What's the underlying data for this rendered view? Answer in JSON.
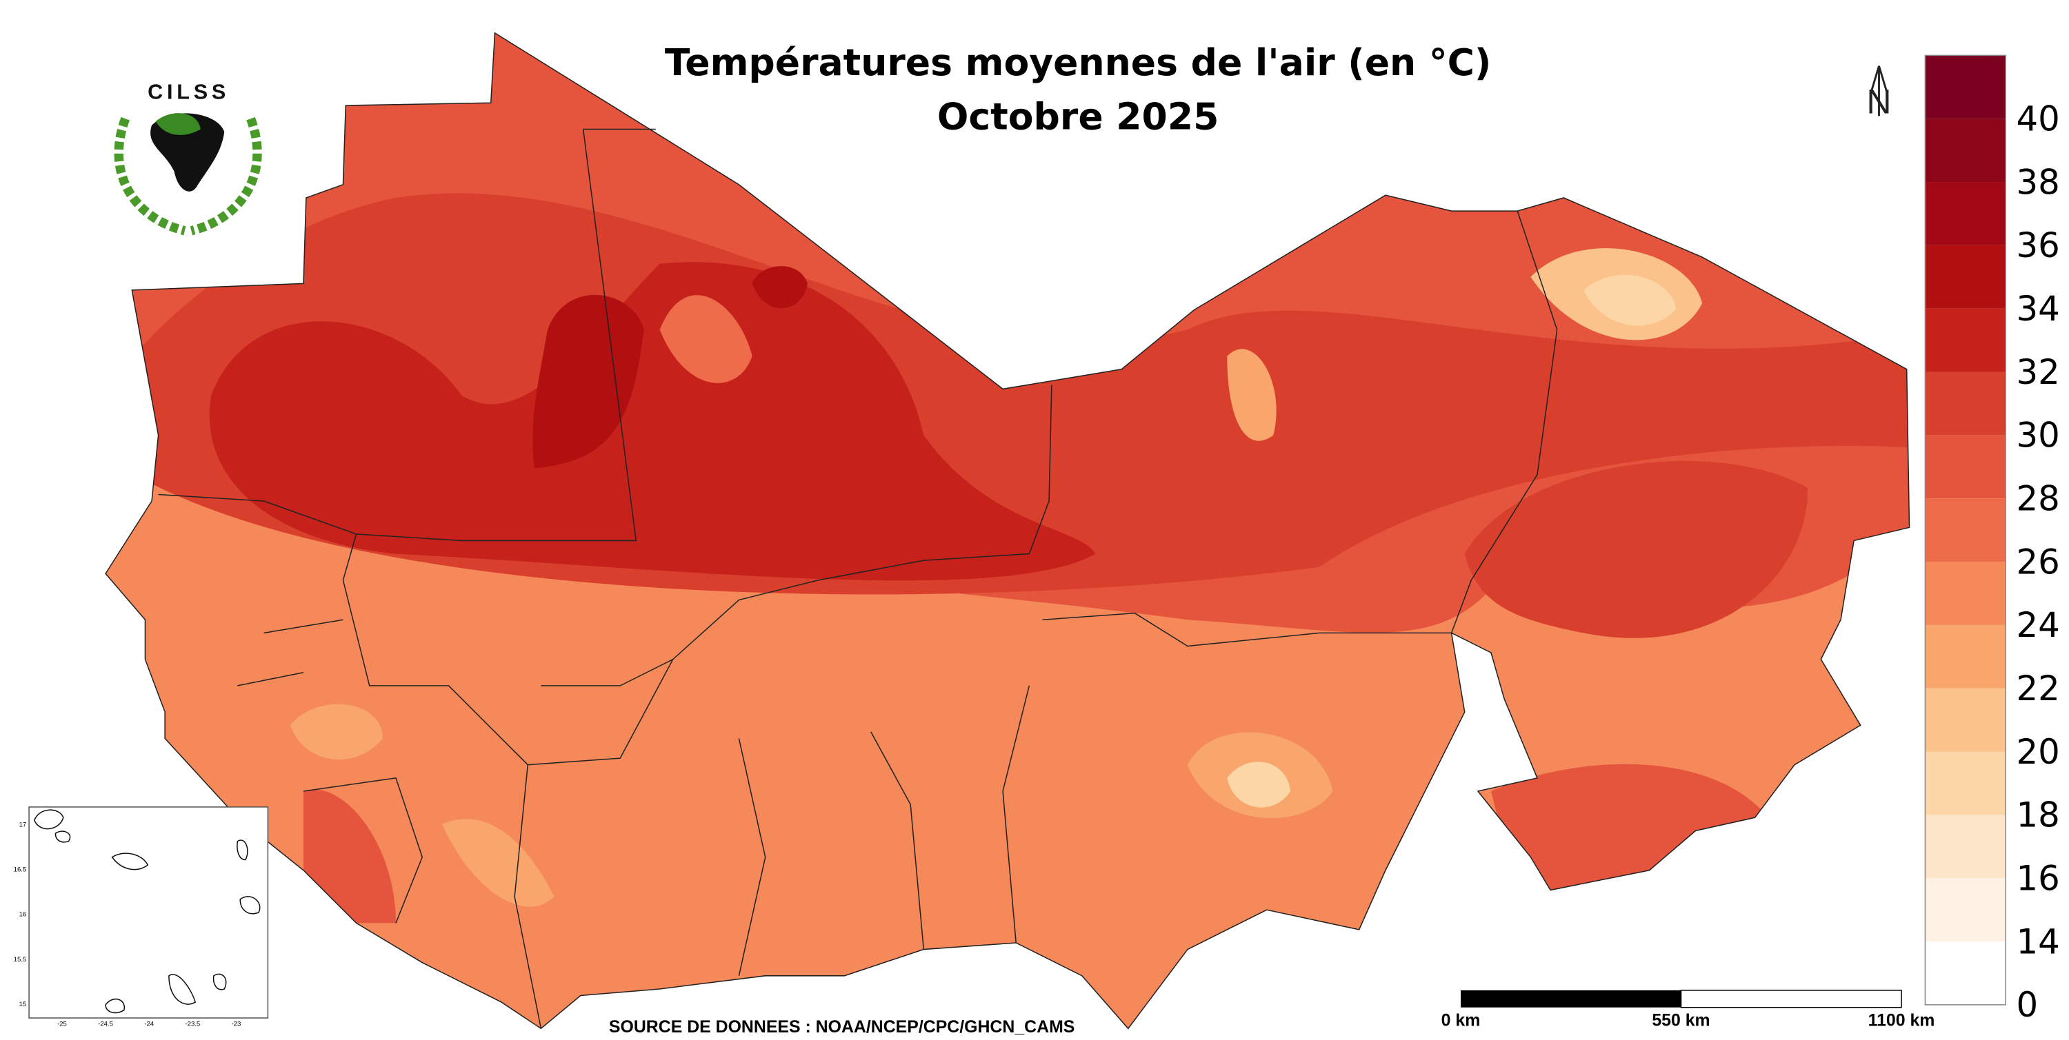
{
  "header": {
    "title": "Températures moyennes de l'air (en °C)",
    "subtitle": "Octobre 2025",
    "logo": "CILSS"
  },
  "legend": {
    "breaks": [
      0,
      14,
      16,
      18,
      20,
      22,
      24,
      26,
      28,
      30,
      32,
      34,
      36,
      38,
      40
    ],
    "colors": [
      "#ffffff",
      "#fdf2e4",
      "#fde5c9",
      "#fcd6a6",
      "#fbc28b",
      "#f9a66c",
      "#f6895a",
      "#ef6c4b",
      "#e5553d",
      "#d83f2d",
      "#c6211b",
      "#b10f10",
      "#a20914",
      "#8c0519",
      "#7c0020"
    ]
  },
  "scale_bar": {
    "labels": [
      "0 km",
      "550 km",
      "1100 km"
    ]
  },
  "source": "SOURCE DE DONNEES : NOAA/NCEP/CPC/GHCN_CAMS",
  "north": "N",
  "inset": {
    "y_labels": [
      "17",
      "16.5",
      "16",
      "15.5",
      "15"
    ],
    "x_labels": [
      "-25",
      "-24.5",
      "-24",
      "-23.5",
      "-23"
    ]
  }
}
